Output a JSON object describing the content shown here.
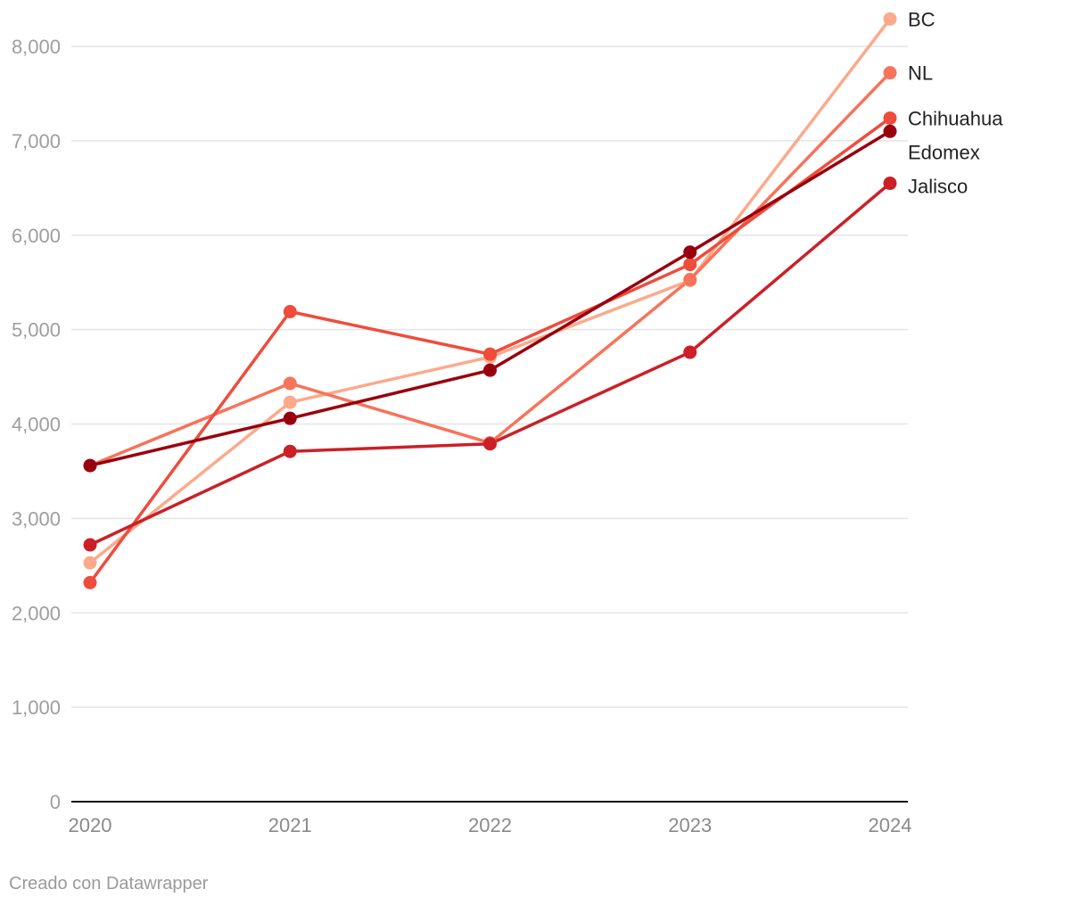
{
  "chart_data": {
    "type": "line",
    "title": "",
    "xlabel": "",
    "ylabel": "",
    "x": [
      "2020",
      "2021",
      "2022",
      "2023",
      "2024"
    ],
    "ylim": [
      0,
      8000
    ],
    "yticks": [
      0,
      1000,
      2000,
      3000,
      4000,
      5000,
      6000,
      7000,
      8000
    ],
    "ytick_labels": [
      "0",
      "1,000",
      "2,000",
      "3,000",
      "4,000",
      "5,000",
      "6,000",
      "7,000",
      "8,000"
    ],
    "grid": true,
    "legend": "direct-labels-right",
    "series": [
      {
        "name": "BC",
        "color": "#fca98c",
        "values": [
          2530,
          4230,
          4710,
          5520,
          8290
        ]
      },
      {
        "name": "NL",
        "color": "#f7735a",
        "values": [
          3560,
          4430,
          3800,
          5530,
          7720
        ]
      },
      {
        "name": "Chihuahua",
        "color": "#ef4c3c",
        "values": [
          2320,
          5190,
          4740,
          5690,
          7240
        ]
      },
      {
        "name": "Edomex",
        "color": "#99000d",
        "values": [
          3560,
          4060,
          4570,
          5820,
          7100
        ]
      },
      {
        "name": "Jalisco",
        "color": "#cb2027",
        "values": [
          2720,
          3710,
          3790,
          4760,
          6550
        ]
      }
    ]
  },
  "credit": "Creado con Datawrapper"
}
